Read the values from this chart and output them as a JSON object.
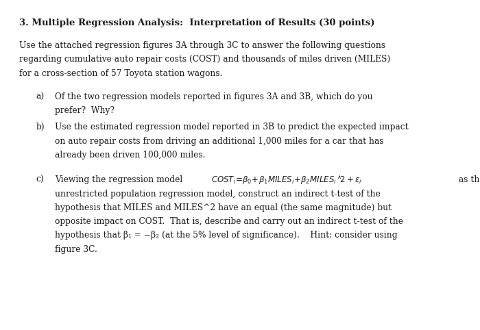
{
  "background_color": "#ffffff",
  "title": "3. Multiple Regression Analysis:  Interpretation of Results (30 points)",
  "intro_line1": "Use the attached regression figures 3A through 3C to answer the following questions",
  "intro_line2": "regarding cumulative auto repair costs (COST) and thousands of miles driven (MILES)",
  "intro_line3": "for a cross-section of 57 Toyota station wagons.",
  "part_a_label": "a)",
  "part_a_line1": "Of the two regression models reported in figures 3A and 3B, which do you",
  "part_a_line2": "prefer?  Why?",
  "part_b_label": "b)",
  "part_b_line1": "Use the estimated regression model reported in 3B to predict the expected impact",
  "part_b_line2": "on auto repair costs from driving an additional 1,000 miles for a car that has",
  "part_b_line3": "already been driven 100,000 miles.",
  "part_c_label": "c)",
  "part_c_before_formula": "Viewing the regression model  ",
  "part_c_after_formula": " as the",
  "part_c_line2": "unrestricted population regression model, construct an indirect t-test of the",
  "part_c_line3": "hypothesis that MILES and MILES^2 have an equal (the same magnitude) but",
  "part_c_line4": "opposite impact on COST.  That is, describe and carry out an indirect t-test of the",
  "part_c_line5": "hypothesis that β₁ = −β₂ (at the 5% level of significance).    Hint: consider using",
  "part_c_line6": "figure 3C.",
  "font_size_title": 9.5,
  "font_size_body": 8.8,
  "text_color": "#1a1a1a"
}
